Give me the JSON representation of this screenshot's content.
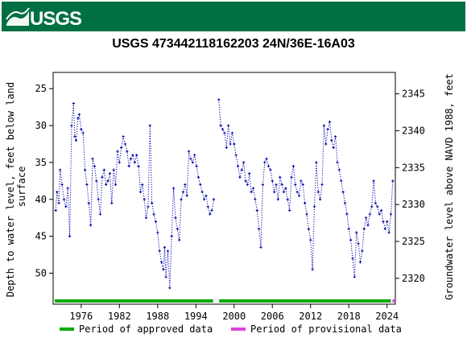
{
  "header": {
    "logo_text": "USGS",
    "brand_color": "#006f41"
  },
  "chart_data": {
    "type": "line",
    "title": "USGS 473442118162203 24N/36E-16A03",
    "ylabel_left": "Depth to water level, feet below land surface",
    "ylabel_right": "Groundwater level above NAVD 1988, feet",
    "xlim": [
      1971.6,
      2025.3
    ],
    "ylim_left": [
      54.2,
      22.8
    ],
    "ylim_right": [
      2316.5,
      2347.9
    ],
    "x_ticks": [
      1976,
      1982,
      1988,
      1994,
      2000,
      2006,
      2012,
      2018,
      2024
    ],
    "y_ticks_left": [
      25,
      30,
      35,
      40,
      45,
      50
    ],
    "y_ticks_right": [
      2320,
      2325,
      2330,
      2335,
      2340,
      2345
    ],
    "grid": false,
    "series": [
      {
        "name": "Depth to water level",
        "color": "#0000aa",
        "style": "dotted",
        "segments": [
          {
            "x": [
              1972.0,
              1972.2,
              1972.5,
              1972.7,
              1973.0,
              1973.3,
              1973.6,
              1973.9,
              1974.2,
              1974.5,
              1974.8,
              1975.0,
              1975.2,
              1975.5,
              1975.7,
              1976.0,
              1976.3,
              1976.6,
              1976.9,
              1977.2,
              1977.5,
              1977.8,
              1978.1,
              1978.4,
              1978.7,
              1979.0,
              1979.3,
              1979.6,
              1979.9,
              1980.2,
              1980.5,
              1980.8,
              1981.1,
              1981.4,
              1981.7,
              1982.0,
              1982.3,
              1982.6,
              1982.9,
              1983.2,
              1983.5,
              1983.8,
              1984.1,
              1984.4,
              1984.7,
              1985.0,
              1985.3,
              1985.6,
              1985.9,
              1986.2,
              1986.5,
              1986.8,
              1987.1,
              1987.4,
              1987.7,
              1988.0,
              1988.3,
              1988.6,
              1988.9,
              1989.1,
              1989.3,
              1989.6,
              1989.9,
              1990.2,
              1990.5,
              1990.8,
              1991.1,
              1991.4,
              1991.7,
              1992.0,
              1992.3,
              1992.6,
              1992.9,
              1993.2,
              1993.5,
              1993.8,
              1994.1,
              1994.4,
              1994.7,
              1995.0,
              1995.3,
              1995.6,
              1995.9,
              1996.2,
              1996.5,
              1996.8
            ],
            "y": [
              41.5,
              39.0,
              40.5,
              36.0,
              38.0,
              40.0,
              41.0,
              38.5,
              45.0,
              30.0,
              27.0,
              31.5,
              32.0,
              29.0,
              28.5,
              30.5,
              31.0,
              36.0,
              38.0,
              40.5,
              43.5,
              34.5,
              35.5,
              37.5,
              40.0,
              42.0,
              37.0,
              36.0,
              38.0,
              37.5,
              36.5,
              40.5,
              36.0,
              38.0,
              33.5,
              35.0,
              33.0,
              31.5,
              32.5,
              33.5,
              35.5,
              34.5,
              34.0,
              35.0,
              34.0,
              35.5,
              39.0,
              38.0,
              40.0,
              42.5,
              41.0,
              30.0,
              40.5,
              42.0,
              43.0,
              44.5,
              47.0,
              48.5,
              49.5,
              46.5,
              50.5,
              47.0,
              52.0,
              45.0,
              38.5,
              42.5,
              44.0,
              45.5,
              40.0,
              39.0,
              38.0,
              39.5,
              33.5,
              34.5,
              35.0,
              34.0,
              35.5,
              37.0,
              38.0,
              39.0,
              40.0,
              39.5,
              41.0,
              42.0,
              41.5,
              40.0
            ]
          },
          {
            "x": [
              1997.6,
              1997.9,
              1998.2,
              1998.5,
              1998.8,
              1999.1,
              1999.4,
              1999.7,
              2000.0,
              2000.3,
              2000.6,
              2000.9,
              2001.2,
              2001.5,
              2001.8,
              2002.1,
              2002.4,
              2002.7,
              2003.0,
              2003.3,
              2003.6,
              2003.9,
              2004.2,
              2004.5,
              2004.8,
              2005.1,
              2005.4,
              2005.7,
              2006.0,
              2006.3,
              2006.6,
              2006.9,
              2007.2,
              2007.5,
              2007.8,
              2008.1,
              2008.4,
              2008.7,
              2009.0,
              2009.3,
              2009.6,
              2009.9,
              2010.2,
              2010.5,
              2010.8,
              2011.1,
              2011.4,
              2011.7,
              2012.0,
              2012.3,
              2012.6,
              2012.9,
              2013.2,
              2013.5,
              2013.8,
              2014.1,
              2014.4,
              2014.7,
              2015.0,
              2015.3,
              2015.6,
              2015.9,
              2016.2,
              2016.5,
              2016.8,
              2017.1,
              2017.4,
              2017.7,
              2018.0,
              2018.3,
              2018.6,
              2018.9,
              2019.2,
              2019.5,
              2019.8,
              2020.1,
              2020.4,
              2020.7,
              2021.0,
              2021.3,
              2021.6,
              2021.9,
              2022.2,
              2022.5,
              2022.8,
              2023.1,
              2023.4,
              2023.7,
              2024.0,
              2024.3,
              2024.6,
              2024.9
            ],
            "y": [
              26.5,
              30.0,
              30.5,
              31.0,
              33.0,
              30.0,
              32.5,
              31.0,
              32.5,
              34.0,
              35.5,
              37.0,
              36.0,
              35.0,
              37.5,
              38.0,
              36.5,
              39.0,
              38.5,
              40.0,
              41.5,
              44.0,
              46.5,
              38.0,
              35.0,
              34.5,
              35.5,
              36.0,
              37.5,
              39.0,
              38.0,
              40.0,
              37.0,
              38.0,
              39.0,
              38.5,
              40.0,
              41.5,
              37.0,
              35.5,
              38.0,
              39.0,
              39.5,
              37.5,
              38.0,
              40.5,
              42.0,
              44.0,
              45.5,
              49.5,
              41.0,
              35.0,
              39.0,
              40.0,
              38.0,
              30.0,
              32.5,
              30.5,
              29.5,
              32.0,
              33.0,
              31.5,
              35.0,
              36.0,
              37.5,
              39.0,
              40.5,
              42.0,
              44.0,
              45.5,
              48.0,
              50.5,
              44.5,
              46.0,
              48.5,
              47.0,
              44.0,
              42.5,
              43.5,
              42.0,
              41.0,
              37.5,
              40.5,
              41.0,
              42.0,
              41.5,
              43.0,
              44.0,
              43.0,
              44.5,
              42.0,
              37.5
            ]
          }
        ]
      }
    ],
    "status_bars": [
      {
        "label": "Period of approved data",
        "color": "#00aa00",
        "ranges": [
          [
            1971.6,
            1996.7
          ],
          [
            1997.4,
            2024.6
          ]
        ]
      },
      {
        "label": "Period of provisional data",
        "color": "#dd44dd",
        "ranges": [
          [
            2024.6,
            2025.3
          ]
        ]
      }
    ],
    "legend": [
      {
        "label": "Period of approved data",
        "color": "#00aa00"
      },
      {
        "label": "Period of provisional data",
        "color": "#dd44dd"
      }
    ],
    "legend_position": "bottom"
  }
}
